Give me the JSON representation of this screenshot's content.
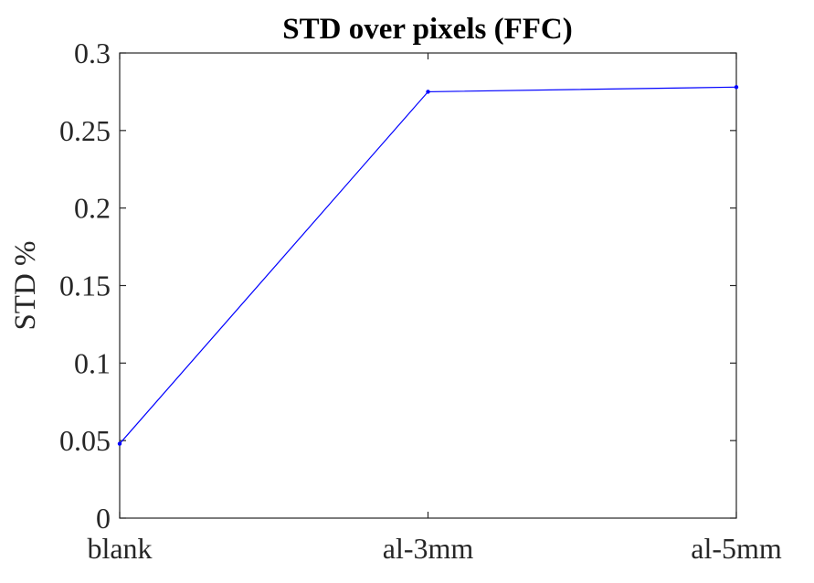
{
  "chart_data": {
    "type": "line",
    "title": "STD over pixels (FFC)",
    "xlabel": "",
    "ylabel": "STD %",
    "categories": [
      "blank",
      "al-3mm",
      "al-5mm"
    ],
    "series": [
      {
        "values": [
          0.048,
          0.275,
          0.278
        ]
      }
    ],
    "ylim": [
      0,
      0.3
    ],
    "yticks": [
      0,
      0.05,
      0.1,
      0.15,
      0.2,
      0.25,
      0.3
    ],
    "ytick_labels": [
      "0",
      "0.05",
      "0.1",
      "0.15",
      "0.2",
      "0.25",
      "0.3"
    ],
    "grid": false,
    "colors": {
      "line": "#0000ff",
      "axes": "#262626",
      "title": "#000000"
    }
  }
}
